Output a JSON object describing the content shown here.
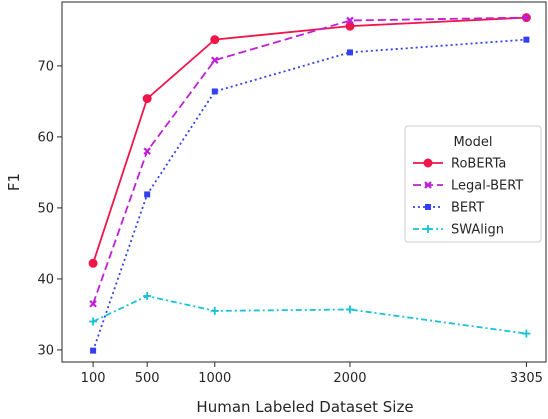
{
  "chart_data": {
    "type": "line",
    "xlabel": "Human Labeled Dataset Size",
    "ylabel": "F1",
    "x": [
      100,
      500,
      1000,
      2000,
      3305
    ],
    "xticks": [
      100,
      500,
      1000,
      2000,
      3305
    ],
    "yticks": [
      30,
      40,
      50,
      60,
      70
    ],
    "xlim": [
      -130,
      3450
    ],
    "ylim": [
      28.3,
      79
    ],
    "grid": false,
    "legend": {
      "title": "Model",
      "placement": "center-right"
    },
    "series": [
      {
        "name": "RoBERTa",
        "values": [
          42.2,
          65.4,
          73.7,
          75.6,
          76.8
        ],
        "color": "#f0154a",
        "dash": "",
        "marker": "circle"
      },
      {
        "name": "Legal-BERT",
        "values": [
          36.5,
          58.0,
          70.8,
          76.4,
          76.8
        ],
        "color": "#bf1fd6",
        "dash": "8,4",
        "marker": "x"
      },
      {
        "name": "BERT",
        "values": [
          29.9,
          51.9,
          66.4,
          71.9,
          73.7
        ],
        "color": "#3340ee",
        "dash": "2,3",
        "marker": "square"
      },
      {
        "name": "SWAlign",
        "values": [
          34.0,
          37.6,
          35.5,
          35.7,
          32.3
        ],
        "color": "#17c2d6",
        "dash": "6,3,2,3",
        "marker": "plus"
      }
    ]
  }
}
